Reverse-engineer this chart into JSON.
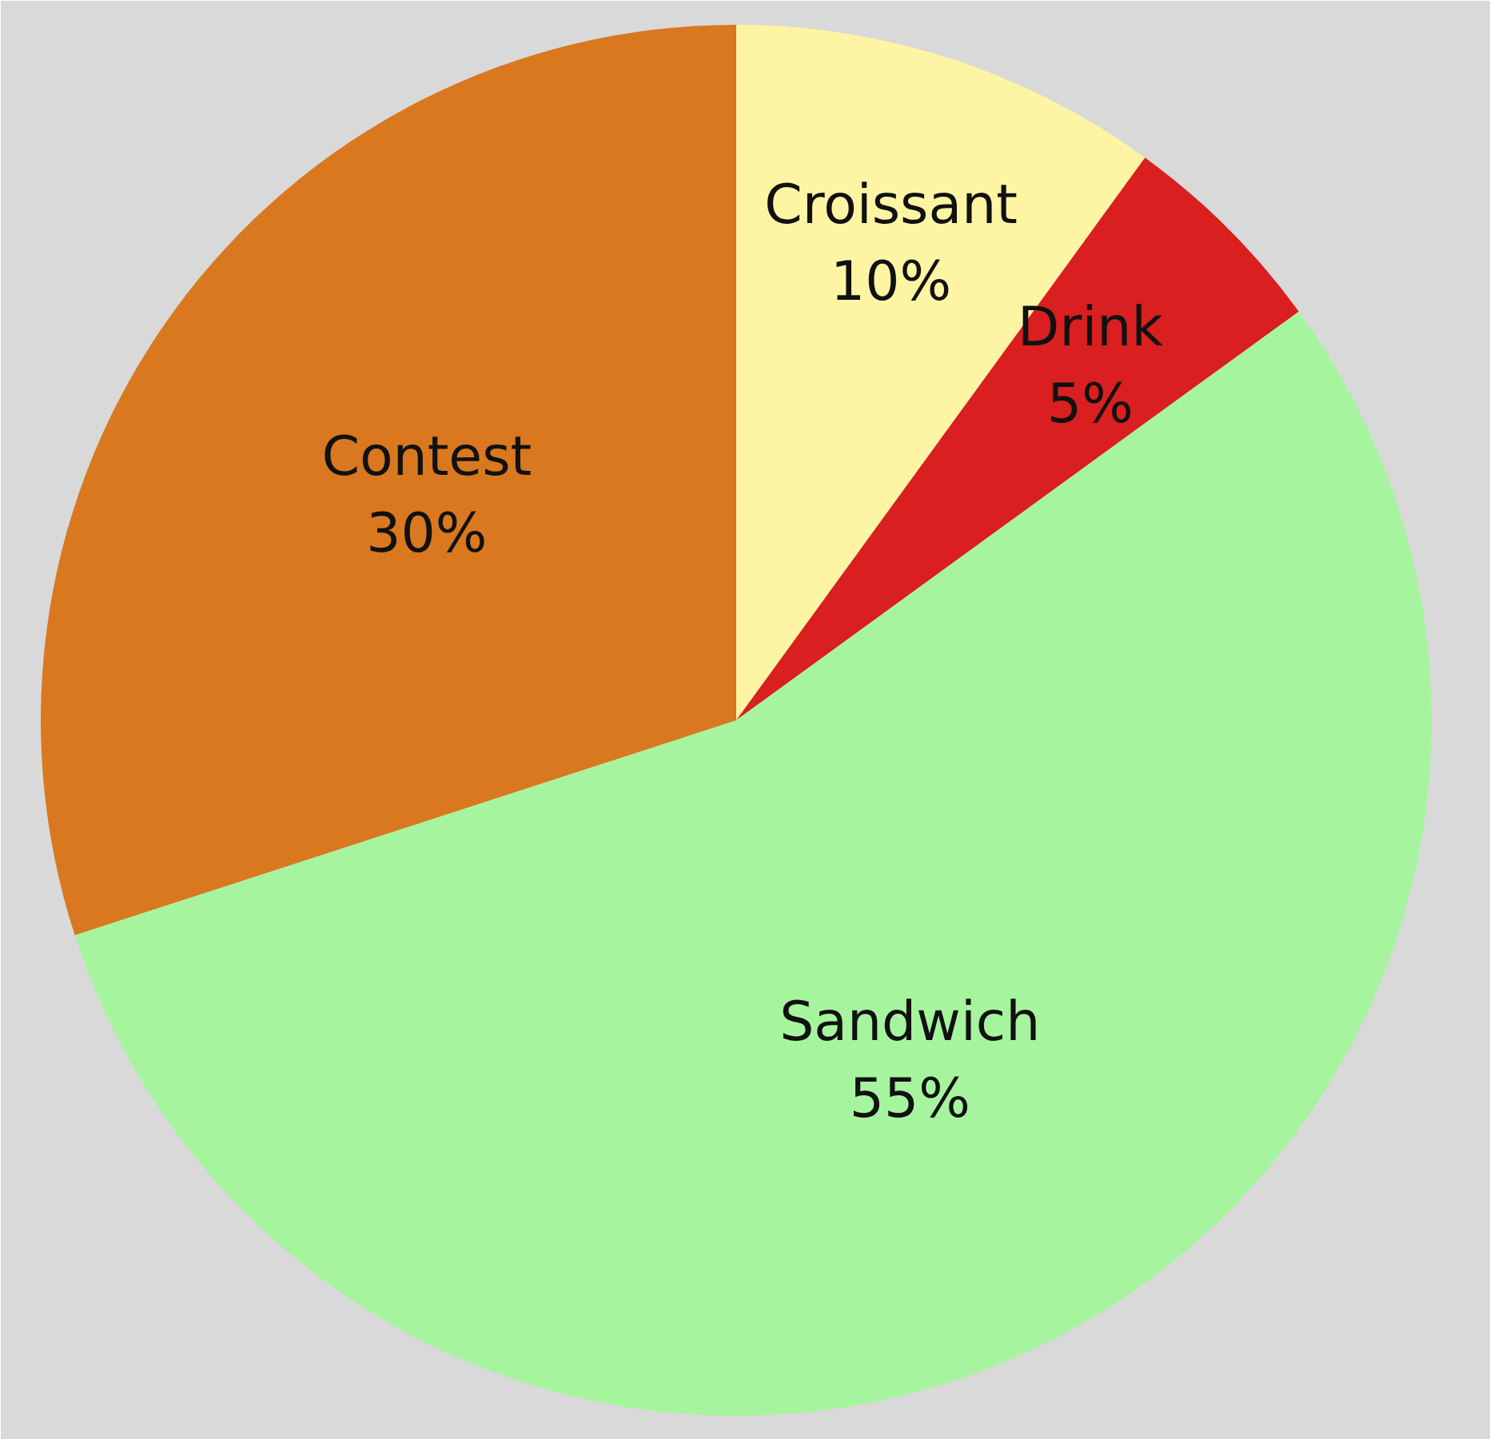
{
  "chart_data": {
    "type": "pie",
    "categories": [
      "Croissant",
      "Drink",
      "Sandwich",
      "Contest"
    ],
    "values": [
      10,
      5,
      55,
      30
    ],
    "colors": [
      "#fdf5a3",
      "#d91f1f",
      "#a6f59e",
      "#d9781f"
    ],
    "value_labels": [
      "10%",
      "5%",
      "55%",
      "30%"
    ]
  }
}
